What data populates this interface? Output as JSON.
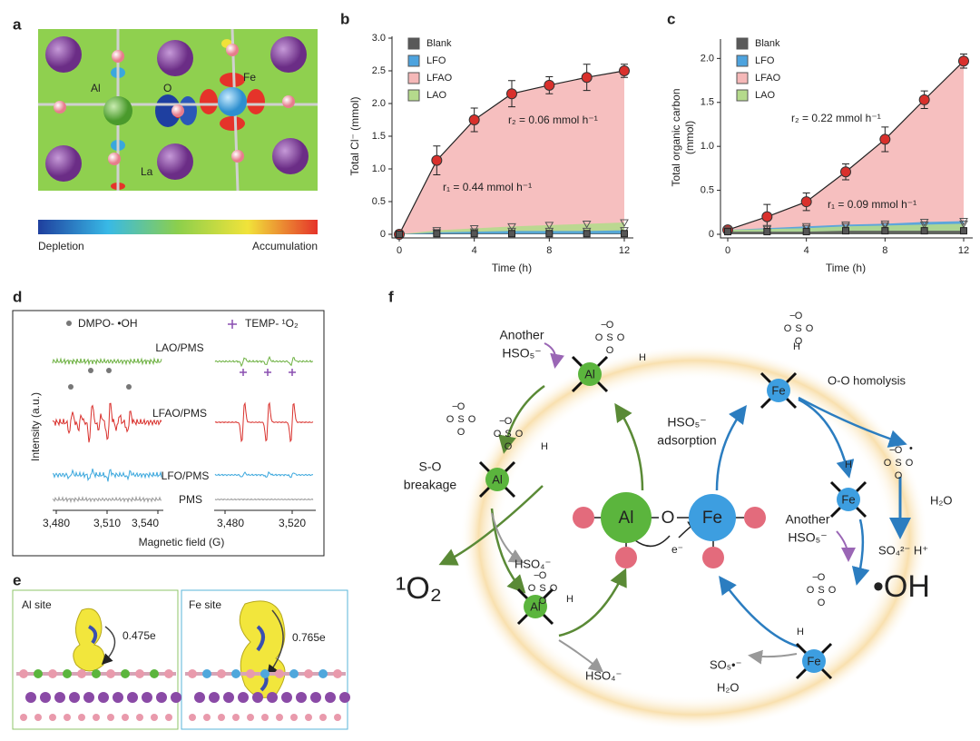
{
  "panel_labels": [
    "a",
    "b",
    "c",
    "d",
    "e",
    "f"
  ],
  "a": {
    "labels": {
      "al": "Al",
      "o": "O",
      "fe": "Fe",
      "la": "La"
    },
    "colorbar": {
      "min_label": "Depletion",
      "max_label": "Accumulation"
    }
  },
  "chart_data": [
    {
      "type": "line",
      "xlabel": "Time (h)",
      "ylabel": "Total Cl⁻ (mmol)",
      "x": [
        0,
        2,
        4,
        6,
        8,
        10,
        12
      ],
      "xlim": [
        0,
        12
      ],
      "xticks": [
        0,
        4,
        8,
        12
      ],
      "ylim": [
        0,
        3
      ],
      "yticks": [
        0,
        0.5,
        {
          "value": 1,
          "label": "1.0"
        },
        1.5,
        {
          "value": 2,
          "label": "2.0"
        },
        2.5,
        {
          "value": 3,
          "label": "3.0"
        }
      ],
      "fill_area": true,
      "series": [
        {
          "name": "Blank",
          "color": "#595959",
          "marker": "square",
          "marker_color": "#555555",
          "values": [
            0,
            0.01,
            0.01,
            0.01,
            0.01,
            0.01,
            0.01
          ]
        },
        {
          "name": "LFO",
          "color": "#4da3de",
          "marker": "triangle",
          "marker_color": "#555555",
          "values": [
            0,
            0.03,
            0.04,
            0.05,
            0.05,
            0.05,
            0.06
          ]
        },
        {
          "name": "LFAO",
          "color": "#f5b8b8",
          "marker": "circle",
          "marker_color": "#d9302c",
          "values": [
            0,
            1.13,
            1.75,
            2.15,
            2.28,
            2.4,
            2.5
          ],
          "errors": [
            0.02,
            0.22,
            0.18,
            0.2,
            0.13,
            0.2,
            0.1
          ]
        },
        {
          "name": "LAO",
          "color": "#b5da8c",
          "marker": "triangle",
          "marker_color": "#555555",
          "values": [
            0,
            0.06,
            0.09,
            0.12,
            0.14,
            0.16,
            0.18
          ]
        }
      ],
      "annotations": [
        "r₂ = 0.06 mmol h⁻¹",
        "r₁ = 0.44 mmol h⁻¹"
      ]
    },
    {
      "type": "line",
      "xlabel": "Time (h)",
      "ylabel": [
        "Total organic carbon",
        "(mmol)"
      ],
      "x": [
        0,
        2,
        4,
        6,
        8,
        10,
        12
      ],
      "xlim": [
        0,
        12
      ],
      "xticks": [
        0,
        4,
        8,
        12
      ],
      "ylim": [
        0,
        2.2
      ],
      "yticks": [
        0,
        0.5,
        {
          "value": 1,
          "label": "1.0"
        },
        1.5,
        {
          "value": 2,
          "label": "2.0"
        }
      ],
      "fill_area": true,
      "series": [
        {
          "name": "Blank",
          "color": "#595959",
          "marker": "square",
          "marker_color": "#555555",
          "values": [
            0.03,
            0.03,
            0.03,
            0.04,
            0.04,
            0.04,
            0.04
          ]
        },
        {
          "name": "LFO",
          "color": "#4da3de",
          "marker": "triangle",
          "marker_color": "#555555",
          "values": [
            0.05,
            0.07,
            0.09,
            0.11,
            0.12,
            0.14,
            0.15
          ]
        },
        {
          "name": "LFAO",
          "color": "#f5b8b8",
          "marker": "circle",
          "marker_color": "#d9302c",
          "values": [
            0.05,
            0.2,
            0.37,
            0.71,
            1.08,
            1.53,
            1.97
          ],
          "errors": [
            0.02,
            0.14,
            0.1,
            0.09,
            0.14,
            0.1,
            0.08
          ]
        },
        {
          "name": "LAO",
          "color": "#b5da8c",
          "marker": "triangle",
          "marker_color": "#555555",
          "values": [
            0.05,
            0.06,
            0.07,
            0.09,
            0.1,
            0.11,
            0.12
          ]
        }
      ],
      "annotations": [
        "r₂ = 0.22 mmol h⁻¹",
        "r₁ = 0.09 mmol h⁻¹"
      ]
    }
  ],
  "d": {
    "legend_left": "DMPO- •OH",
    "legend_right": "TEMP- ¹O₂",
    "traces": [
      "LAO/PMS",
      "LFAO/PMS",
      "LFO/PMS",
      "PMS"
    ],
    "ticks_left": [
      "3,480",
      "3,510",
      "3,540"
    ],
    "ticks_right": [
      "3,480",
      "3,520"
    ],
    "xlabel": "Magnetic field (G)",
    "ylabel": "Intensity (a.u.)"
  },
  "e": {
    "al_title": "Al site",
    "al_charge": "0.475e",
    "fe_title": "Fe site",
    "fe_charge": "0.765e"
  },
  "f": {
    "another": "Another",
    "hso5": "HSO₅⁻",
    "adsorption": "adsorption",
    "homolysis": "O-O homolysis",
    "so": "S-O",
    "breakage": "breakage",
    "al": "Al",
    "fe": "Fe",
    "o": "O",
    "electron": "e⁻",
    "hso4": "HSO₄⁻",
    "singlet": "¹O₂",
    "so4": "SO₄²⁻ H⁺",
    "h2o": "H₂O",
    "oh": "•OH",
    "so5": "SO₅•⁻",
    "atoms": {
      "O": "O",
      "S": "S",
      "H": "H",
      "minus": "−",
      "dot": "•"
    }
  }
}
